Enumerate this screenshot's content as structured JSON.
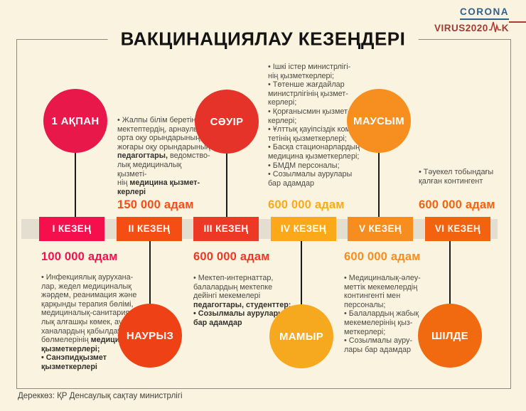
{
  "page": {
    "title": "ВАКЦИНАЦИЯЛАУ КЕЗЕҢДЕРІ",
    "footer": "Дереккөз: ҚР Денсаулық сақтау министрлігі",
    "colors": {
      "background": "#faf3e0",
      "frame": "#8d8a7c",
      "band": "#e4ded1",
      "connector": "#1b1b1b",
      "body_text": "#4c4a45",
      "title_text": "#141414"
    }
  },
  "logo": {
    "top": "CORONA",
    "bottom": "VIRUS2020",
    "suffix": "K",
    "top_color": "#31608e",
    "bottom_color": "#a23a35",
    "pulse_color": "#b13a32"
  },
  "stages": [
    {
      "label": "I КЕЗЕҢ",
      "month": "1 АҚПАН",
      "count": "100 000 адам",
      "color": "#f60f4d",
      "circle_color": "#e8194a",
      "details": [
        {
          "t": "• Инфекциялық аурухана-\nлар, жедел медициналық\nжәрдем, реанимация және\nқарқынды терапия бөлімі,\nмедициналық-санитария-\nлық алғашқы көмек, ауру-\nханалардың қабылдау\nбөлмелерінің "
        },
        {
          "t": "медицина\nқызметкерлері;",
          "b": true
        },
        {
          "t": "\n"
        },
        {
          "t": "• Санэпидқызмет\nқызметкерлері",
          "b": true
        }
      ]
    },
    {
      "label": "II КЕЗЕҢ",
      "month": "НАУРЫЗ",
      "count": "150 000 адам",
      "color": "#f54e15",
      "circle_color": "#ee4115",
      "details": [
        {
          "t": "• Жалпы білім беретін\nмектептердің, арнаулы\nорта оқу орындарының,\nжоғары оқу орындарының\n"
        },
        {
          "t": "педагогтары,",
          "b": true
        },
        {
          "t": " ведомство-\nлық медициналық қызметі-\nнің "
        },
        {
          "t": "медицина қызмет-\nкерлері",
          "b": true
        }
      ]
    },
    {
      "label": "III КЕЗЕҢ",
      "month": "СӘУІР",
      "count": "600 000 адам",
      "color": "#ed3826",
      "circle_color": "#e6332a",
      "details": [
        {
          "t": "• Мектеп-интернаттар,\nбалалардың мектепке\nдейінгі мекемелері\n"
        },
        {
          "t": "педагогтары, студенттер;",
          "b": true
        },
        {
          "t": "\n"
        },
        {
          "t": "• Созылмалы аурулары\nбар адамдар",
          "b": true
        }
      ]
    },
    {
      "label": "IV КЕЗЕҢ",
      "month": "МАМЫР",
      "count": "600 000 адам",
      "color": "#fba918",
      "circle_color": "#f6a91e",
      "details": [
        {
          "t": "• Ішкі істер министрлігі-\nнің қызметкерлері;\n• Төтенше жағдайлар\nминистрлігінің қызмет-\nкерлері;\n• Қорғанысмин қызмет-\nкерлері;\n• Ұлттық қауіпсіздік коми-\nтетінің қызметкерлері;\n• Басқа стационарлардың\nмедицина қызметкерлері;\n• БМДМ персоналы;\n• Созылмалы аурулары\nбар адамдар"
        }
      ]
    },
    {
      "label": "V КЕЗЕҢ",
      "month": "МАУСЫМ",
      "count": "600 000 адам",
      "color": "#f78d1e",
      "circle_color": "#f78f20",
      "details": [
        {
          "t": "• Медициналық-әлеу-\nметтік мекемелердің\nконтингенті мен\nперсоналы;\n•  Балалардың жабық\nмекемелерінің қыз-\nметкерлері;\n• Созылмалы ауру-\nлары бар адамдар"
        }
      ]
    },
    {
      "label": "VI КЕЗЕҢ",
      "month": "ШІЛДЕ",
      "count": "600 000 адам",
      "color": "#f2620f",
      "circle_color": "#f26a10",
      "details": [
        {
          "t": "• Тәуекел тобындағы\nқалған контингент"
        }
      ]
    }
  ]
}
